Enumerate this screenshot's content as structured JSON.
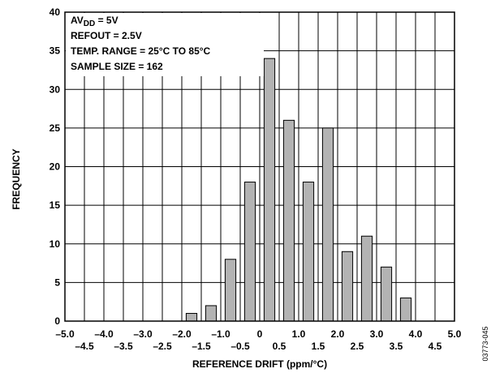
{
  "chart_data": {
    "type": "bar",
    "title": "",
    "xlabel": "REFERENCE DRIFT (ppm/°C)",
    "ylabel": "FREQUENCY",
    "xlim": [
      -5.0,
      5.0
    ],
    "ylim": [
      0,
      40
    ],
    "yticks": [
      0,
      5,
      10,
      15,
      20,
      25,
      30,
      35,
      40
    ],
    "xticks_upper": [
      "–5.0",
      "–4.0",
      "–3.0",
      "–2.0",
      "–1.0",
      "0",
      "1.0",
      "2.0",
      "3.0",
      "4.0",
      "5.0"
    ],
    "xticks_lower": [
      "–4.5",
      "–3.5",
      "–2.5",
      "–1.5",
      "–0.5",
      "0.5",
      "1.5",
      "2.5",
      "3.5",
      "4.5"
    ],
    "grid": true,
    "bar_color": "#b3b3b3",
    "x": [
      -1.75,
      -1.25,
      -0.75,
      -0.25,
      0.25,
      0.75,
      1.25,
      1.75,
      2.25,
      2.75,
      3.25,
      3.75
    ],
    "values": [
      1,
      2,
      8,
      18,
      34,
      26,
      18,
      25,
      9,
      11,
      7,
      3
    ],
    "annotations": {
      "avdd_prefix": "AV",
      "avdd_sub": "DD",
      "avdd_suffix": " = 5V",
      "refout": "REFOUT = 2.5V",
      "temp_range": "TEMP. RANGE = 25°C TO 85°C",
      "sample_size": "SAMPLE SIZE = 162"
    },
    "figure_id": "03773-045"
  }
}
